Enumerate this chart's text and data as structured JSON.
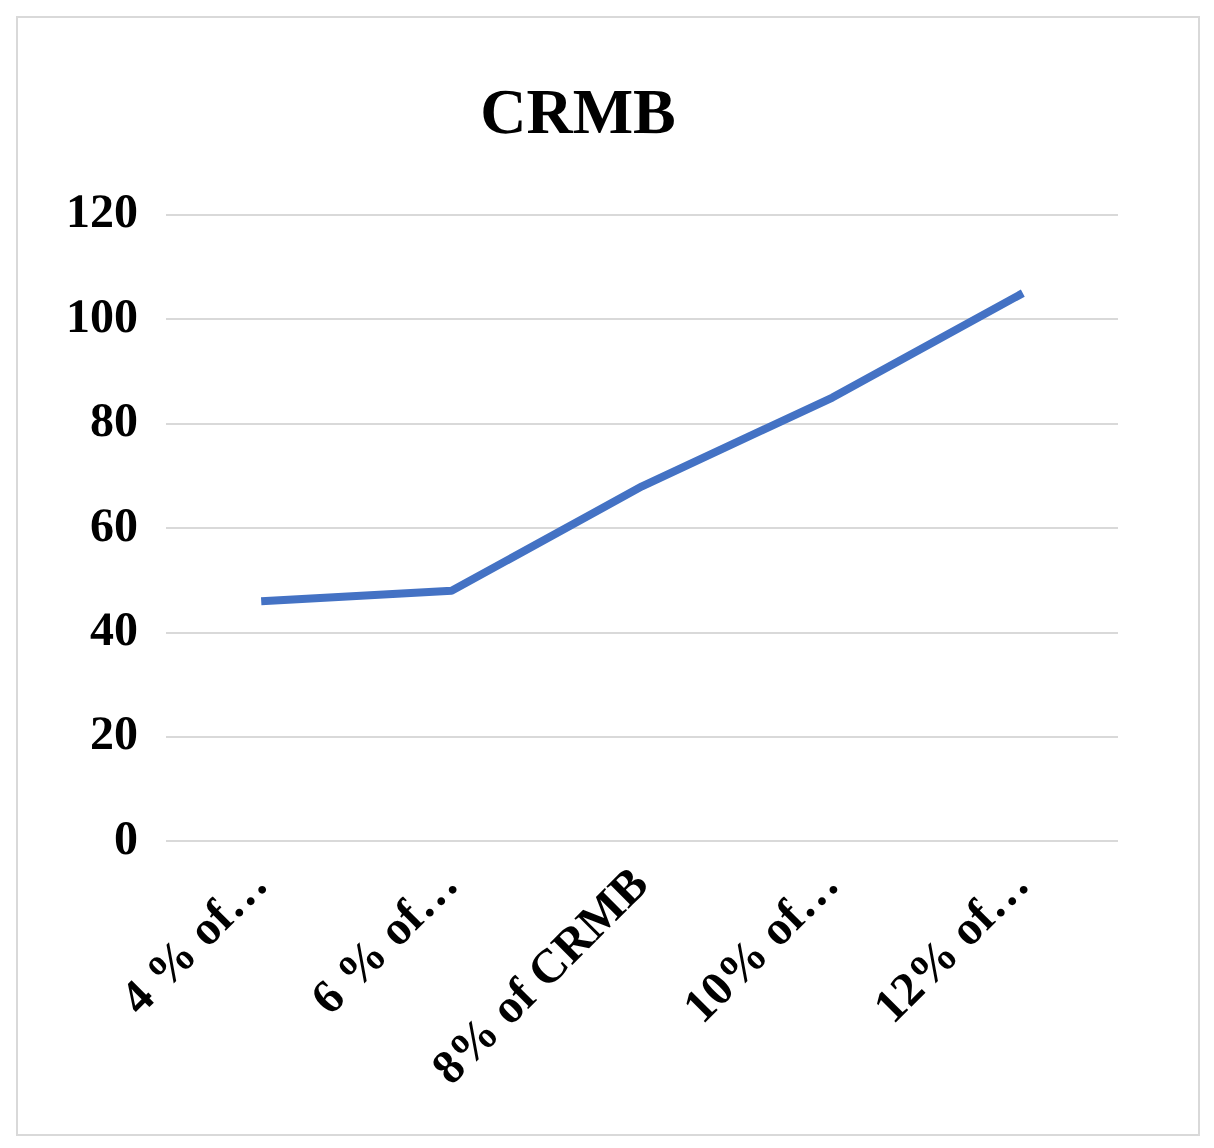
{
  "chart_data": {
    "type": "line",
    "title": "CRMB",
    "categories": [
      "4 % of…",
      "6 % of…",
      "8% of CRMB",
      "10% of…",
      "12% of…"
    ],
    "series": [
      {
        "color": "#4472c4",
        "values": [
          46,
          48,
          68,
          85,
          105
        ]
      }
    ],
    "ylim": [
      0,
      120
    ],
    "yticks": [
      0,
      20,
      40,
      60,
      80,
      100,
      120
    ],
    "grid": "y",
    "legend": false,
    "marker": "none"
  }
}
